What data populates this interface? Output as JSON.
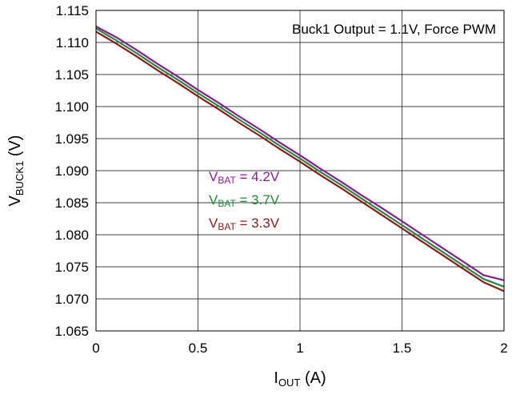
{
  "chart_data": {
    "type": "line",
    "title": "",
    "annotation": "Buck1 Output = 1.1V, Force PWM",
    "xlabel": {
      "main": "I",
      "sub": "OUT",
      "suffix": " (A)"
    },
    "ylabel": {
      "main": "V",
      "sub": "BUCK1",
      "suffix": " (V)"
    },
    "xlim": [
      0,
      2
    ],
    "ylim": [
      1.065,
      1.115
    ],
    "xticks": [
      0,
      0.5,
      1,
      1.5,
      2
    ],
    "xtick_labels": [
      "0",
      "0.5",
      "1",
      "1.5",
      "2"
    ],
    "yticks": [
      1.065,
      1.07,
      1.075,
      1.08,
      1.085,
      1.09,
      1.095,
      1.1,
      1.105,
      1.11,
      1.115
    ],
    "ytick_labels": [
      "1.065",
      "1.070",
      "1.075",
      "1.080",
      "1.085",
      "1.090",
      "1.095",
      "1.100",
      "1.105",
      "1.110",
      "1.115"
    ],
    "grid": true,
    "legend_position": "center-left",
    "series": [
      {
        "name": "V_BAT = 4.2V",
        "label": {
          "main": "V",
          "sub": "BAT",
          "suffix": " = 4.2V"
        },
        "color": "#8b1a9b",
        "x": [
          0,
          0.1,
          0.2,
          0.3,
          0.4,
          0.5,
          0.6,
          0.7,
          0.8,
          0.9,
          1.0,
          1.1,
          1.2,
          1.3,
          1.4,
          1.5,
          1.6,
          1.7,
          1.8,
          1.9,
          2.0
        ],
        "y": [
          1.1125,
          1.1108,
          1.1088,
          1.1067,
          1.1047,
          1.1026,
          1.1006,
          1.0985,
          1.0965,
          1.0944,
          1.0924,
          1.0903,
          1.0883,
          1.0862,
          1.0842,
          1.0821,
          1.08,
          1.0779,
          1.0758,
          1.0737,
          1.0729
        ]
      },
      {
        "name": "V_BAT = 3.7V",
        "label": {
          "main": "V",
          "sub": "BAT",
          "suffix": " = 3.7V"
        },
        "color": "#1e8c3a",
        "x": [
          0,
          0.1,
          0.2,
          0.3,
          0.4,
          0.5,
          0.6,
          0.7,
          0.8,
          0.9,
          1.0,
          1.1,
          1.2,
          1.3,
          1.4,
          1.5,
          1.6,
          1.7,
          1.8,
          1.9,
          2.0
        ],
        "y": [
          1.1122,
          1.1103,
          1.1083,
          1.1062,
          1.1042,
          1.1021,
          1.1001,
          1.098,
          1.096,
          1.0939,
          1.0919,
          1.0898,
          1.0878,
          1.0857,
          1.0836,
          1.0815,
          1.0794,
          1.0773,
          1.0752,
          1.0731,
          1.0719
        ]
      },
      {
        "name": "V_BAT = 3.3V",
        "label": {
          "main": "V",
          "sub": "BAT",
          "suffix": " = 3.3V"
        },
        "color": "#8b1a1a",
        "x": [
          0,
          0.1,
          0.2,
          0.3,
          0.4,
          0.5,
          0.6,
          0.7,
          0.8,
          0.9,
          1.0,
          1.1,
          1.2,
          1.3,
          1.4,
          1.5,
          1.6,
          1.7,
          1.8,
          1.9,
          2.0
        ],
        "y": [
          1.1117,
          1.1098,
          1.1078,
          1.1057,
          1.1037,
          1.1016,
          1.0996,
          1.0975,
          1.0955,
          1.0934,
          1.0914,
          1.0893,
          1.0873,
          1.0852,
          1.0831,
          1.081,
          1.0789,
          1.0768,
          1.0747,
          1.0726,
          1.0712
        ]
      }
    ]
  }
}
